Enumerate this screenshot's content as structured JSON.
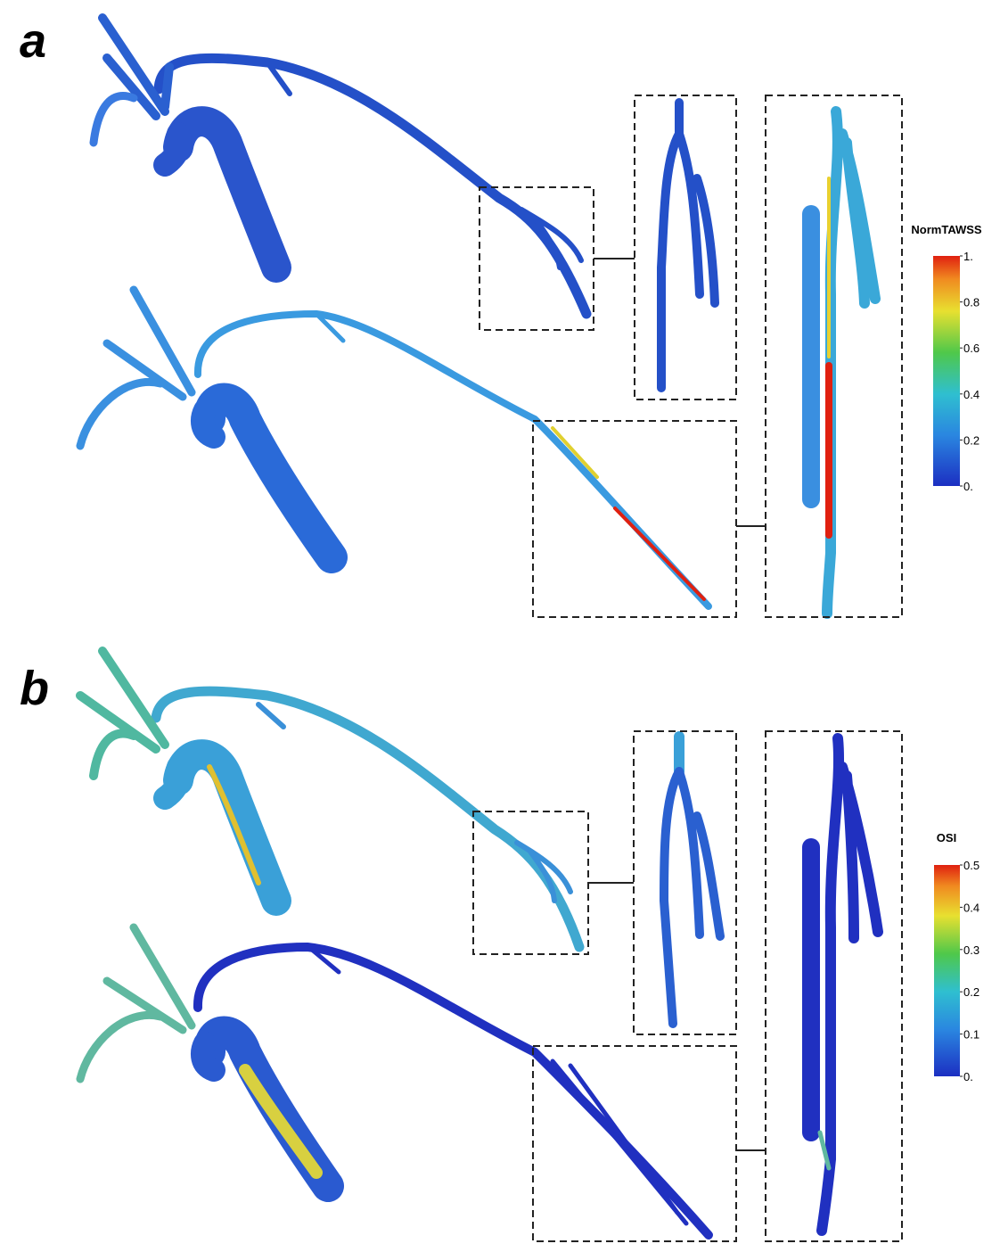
{
  "panels": [
    {
      "label": "a",
      "colorbar": {
        "title": "NormTAWSS",
        "ticks": [
          "1.",
          "0.8",
          "0.6",
          "0.4",
          "0.2",
          "0."
        ]
      }
    },
    {
      "label": "b",
      "colorbar": {
        "title": "OSI",
        "ticks": [
          "0.5",
          "0.4",
          "0.3",
          "0.2",
          "0.1",
          "0."
        ]
      }
    }
  ]
}
